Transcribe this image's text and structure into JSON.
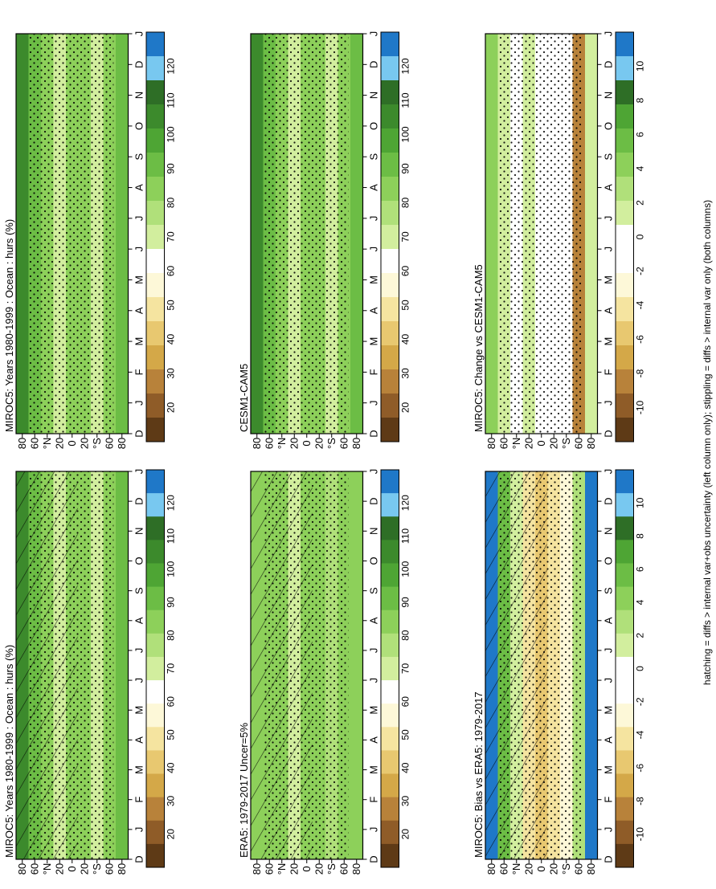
{
  "figure": {
    "footnote": "hatching = diffs > internal var+obs uncertainty (left column only); stippling = diffs > internal var only (both columns)"
  },
  "colors": {
    "abs_scale": [
      "#1f78c8",
      "#78c8f0",
      "#2e6e26",
      "#3c8a2c",
      "#4ea534",
      "#6cbd45",
      "#8dd05a",
      "#b0e07a",
      "#d2ee9e",
      "#ffffff",
      "#fdf8d8",
      "#f5e4a0",
      "#e8c870",
      "#d4a848",
      "#b8823a",
      "#8f5c28",
      "#5e3a16"
    ],
    "diff_scale": [
      "#1f78c8",
      "#78c8f0",
      "#2e6e26",
      "#4ea534",
      "#6cbd45",
      "#8dd05a",
      "#b0e07a",
      "#d2ee9e",
      "#ffffff",
      "#ffffff",
      "#fdf8d8",
      "#f5e4a0",
      "#e8c870",
      "#d4a848",
      "#b8823a",
      "#8f5c28",
      "#5e3a16"
    ]
  },
  "chart_data": [
    {
      "type": "heatmap",
      "title": "MIROC5: Years 1980-1999 : Ocean : hurs (%)",
      "x_ticks": [
        "D",
        "J",
        "F",
        "M",
        "A",
        "M",
        "J",
        "J",
        "A",
        "S",
        "O",
        "N",
        "D",
        "J"
      ],
      "y_ticks": [
        "80",
        "60",
        "°N",
        "20",
        "0",
        "20",
        "°S",
        "60",
        "80"
      ],
      "colorbar_ticks": [
        "120",
        "110",
        "100",
        "90",
        "80",
        "70",
        "60",
        "50",
        "40",
        "30",
        "20"
      ],
      "approx_values_by_band": {
        "80N": 100,
        "60N": 90,
        "40N": 80,
        "20N": 70,
        "0": 85,
        "20S": 80,
        "40S": 72,
        "60S": 85,
        "80S": 88
      }
    },
    {
      "type": "heatmap",
      "title": "MIROC5: Years 1980-1999 : Ocean : hurs (%)",
      "x_ticks": [
        "D",
        "J",
        "F",
        "M",
        "A",
        "M",
        "J",
        "J",
        "A",
        "S",
        "O",
        "N",
        "D",
        "J"
      ],
      "y_ticks": [
        "80",
        "60",
        "°N",
        "20",
        "0",
        "20",
        "°S",
        "60",
        "80"
      ],
      "colorbar_ticks": [
        "120",
        "110",
        "100",
        "90",
        "80",
        "70",
        "60",
        "50",
        "40",
        "30",
        "20"
      ],
      "approx_values_by_band": {
        "80N": 102,
        "60N": 90,
        "40N": 80,
        "20N": 70,
        "0": 84,
        "20S": 80,
        "40S": 72,
        "60S": 86,
        "80S": 88
      }
    },
    {
      "type": "heatmap",
      "title": "ERA5: 1979-2017 Uncer=5%",
      "x_ticks": [
        "D",
        "J",
        "F",
        "M",
        "A",
        "M",
        "J",
        "J",
        "A",
        "S",
        "O",
        "N",
        "D",
        "J"
      ],
      "y_ticks": [
        "80",
        "60",
        "°N",
        "20",
        "0",
        "20",
        "°S",
        "60",
        "80"
      ],
      "colorbar_ticks": [
        "120",
        "110",
        "100",
        "90",
        "80",
        "70",
        "60",
        "50",
        "40",
        "30",
        "20"
      ],
      "approx_values_by_band": {
        "80N": 85,
        "60N": 84,
        "40N": 80,
        "20N": 72,
        "0": 80,
        "20S": 80,
        "40S": 78,
        "60S": 80,
        "80S": 84
      }
    },
    {
      "type": "heatmap",
      "title": "CESM1-CAM5",
      "x_ticks": [
        "D",
        "J",
        "F",
        "M",
        "A",
        "M",
        "J",
        "J",
        "A",
        "S",
        "O",
        "N",
        "D",
        "J"
      ],
      "y_ticks": [
        "80",
        "60",
        "°N",
        "20",
        "0",
        "20",
        "°S",
        "60",
        "80"
      ],
      "colorbar_ticks": [
        "120",
        "110",
        "100",
        "90",
        "80",
        "70",
        "60",
        "50",
        "40",
        "30",
        "20"
      ],
      "approx_values_by_band": {
        "80N": 100,
        "60N": 90,
        "40N": 80,
        "20N": 70,
        "0": 84,
        "20S": 80,
        "40S": 72,
        "60S": 86,
        "80S": 90
      }
    },
    {
      "type": "heatmap",
      "title": "MIROC5: Bias vs ERA5: 1979-2017",
      "x_ticks": [
        "D",
        "J",
        "F",
        "M",
        "A",
        "M",
        "J",
        "J",
        "A",
        "S",
        "O",
        "N",
        "D",
        "J"
      ],
      "y_ticks": [
        "80",
        "60",
        "°N",
        "20",
        "0",
        "20",
        "°S",
        "60",
        "80"
      ],
      "colorbar_ticks": [
        "10",
        "8",
        "6",
        "4",
        "2",
        "0",
        "-2",
        "-4",
        "-6",
        "-8",
        "-10"
      ],
      "approx_values_by_band": {
        "80N": 12,
        "60N": 6,
        "40N": 1,
        "20N": -4,
        "0": -6,
        "20S": -4,
        "40S": -3,
        "60S": 3,
        "80S": 12
      }
    },
    {
      "type": "heatmap",
      "title": "MIROC5: Change vs CESM1-CAM5",
      "x_ticks": [
        "D",
        "J",
        "F",
        "M",
        "A",
        "M",
        "J",
        "J",
        "A",
        "S",
        "O",
        "N",
        "D",
        "J"
      ],
      "y_ticks": [
        "80",
        "60",
        "°N",
        "20",
        "0",
        "20",
        "°S",
        "60",
        "80"
      ],
      "colorbar_ticks": [
        "10",
        "8",
        "6",
        "4",
        "2",
        "0",
        "-2",
        "-4",
        "-6",
        "-8",
        "-10"
      ],
      "approx_values_by_band": {
        "80N": 4,
        "60N": 1,
        "40N": 0,
        "20N": 1,
        "0": -1,
        "20S": -2,
        "40S": -1,
        "60S": -8,
        "80S": 1
      }
    }
  ]
}
